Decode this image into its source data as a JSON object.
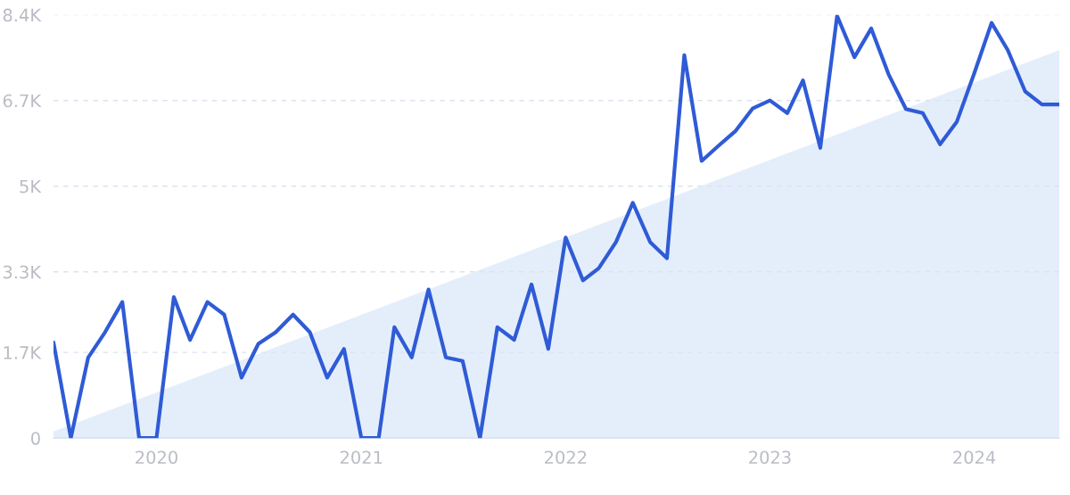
{
  "chart_data": {
    "type": "line",
    "x": [
      "2019-07",
      "2019-08",
      "2019-09",
      "2019-10",
      "2019-11",
      "2019-12",
      "2020-01",
      "2020-02",
      "2020-03",
      "2020-04",
      "2020-05",
      "2020-06",
      "2020-07",
      "2020-08",
      "2020-09",
      "2020-10",
      "2020-11",
      "2020-12",
      "2021-01",
      "2021-02",
      "2021-03",
      "2021-04",
      "2021-05",
      "2021-06",
      "2021-07",
      "2021-08",
      "2021-09",
      "2021-10",
      "2021-11",
      "2021-12",
      "2022-01",
      "2022-02",
      "2022-03",
      "2022-04",
      "2022-05",
      "2022-06",
      "2022-07",
      "2022-08",
      "2022-09",
      "2022-10",
      "2022-11",
      "2022-12",
      "2023-01",
      "2023-02",
      "2023-03",
      "2023-04",
      "2023-05",
      "2023-06",
      "2023-07",
      "2023-08",
      "2023-09",
      "2023-10",
      "2023-11",
      "2023-12",
      "2024-01",
      "2024-02",
      "2024-03",
      "2024-04",
      "2024-05",
      "2024-06"
    ],
    "series": [
      {
        "type": "area",
        "color": "#e4eefb",
        "x": [
          "2019-07",
          "2024-06"
        ],
        "values": [
          130,
          7700
        ]
      },
      {
        "color": "#2f5bd6",
        "values": [
          1900,
          0,
          1600,
          2100,
          2700,
          0,
          0,
          2800,
          1950,
          2700,
          2450,
          1200,
          1870,
          2100,
          2450,
          2100,
          1200,
          1770,
          0,
          0,
          2200,
          1600,
          2950,
          1600,
          1530,
          0,
          2200,
          1950,
          3050,
          1770,
          3980,
          3130,
          3370,
          3890,
          4670,
          3890,
          3570,
          7600,
          5500,
          5800,
          6100,
          6540,
          6700,
          6450,
          7100,
          5760,
          8380,
          7560,
          8130,
          7220,
          6530,
          6450,
          5830,
          6280,
          7240,
          8240,
          7700,
          6880,
          6620,
          6620
        ]
      }
    ],
    "xlim": [
      "2019-07",
      "2024-06"
    ],
    "xticks": [
      {
        "value": "2020-01",
        "label": "2020"
      },
      {
        "value": "2021-01",
        "label": "2021"
      },
      {
        "value": "2022-01",
        "label": "2022"
      },
      {
        "value": "2023-01",
        "label": "2023"
      },
      {
        "value": "2024-01",
        "label": "2024"
      }
    ],
    "ylim": [
      0,
      8400
    ],
    "yticks": [
      0,
      {
        "value": 1700,
        "label": "1.7K"
      },
      {
        "value": 3300,
        "label": "3.3K"
      },
      {
        "value": 5000,
        "label": "5K"
      },
      {
        "value": 6700,
        "label": "6.7K"
      },
      {
        "value": 8400,
        "label": "8.4K"
      }
    ],
    "grid": "y",
    "line_style": "solid",
    "marker": "none"
  }
}
